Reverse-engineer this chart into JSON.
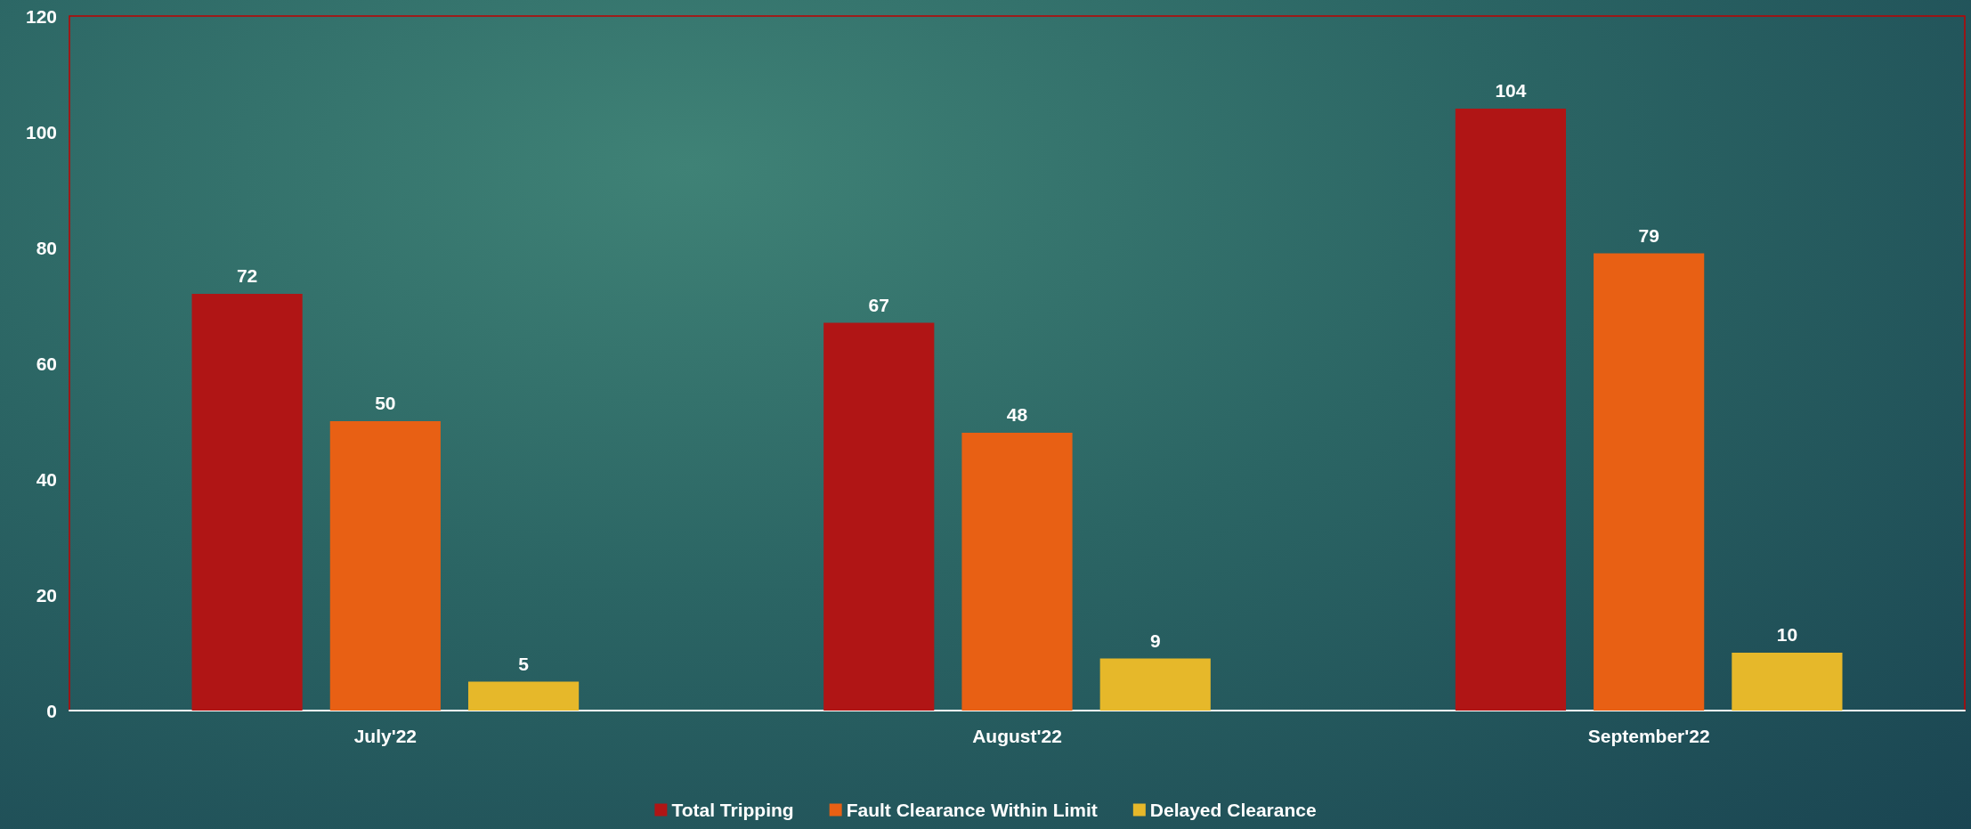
{
  "chart_data": {
    "type": "bar",
    "categories": [
      "July'22",
      "August'22",
      "September'22"
    ],
    "series": [
      {
        "name": "Total Tripping",
        "color": "#b01515",
        "values": [
          72,
          67,
          104
        ]
      },
      {
        "name": "Fault Clearance Within Limit",
        "color": "#e86014",
        "values": [
          50,
          48,
          79
        ]
      },
      {
        "name": "Delayed Clearance",
        "color": "#e6b82a",
        "values": [
          5,
          9,
          10
        ]
      }
    ],
    "ylim": [
      0,
      120
    ],
    "yticks": [
      0,
      20,
      40,
      60,
      80,
      100,
      120
    ],
    "data_labels": true,
    "grid": false,
    "legend": "bottom"
  }
}
